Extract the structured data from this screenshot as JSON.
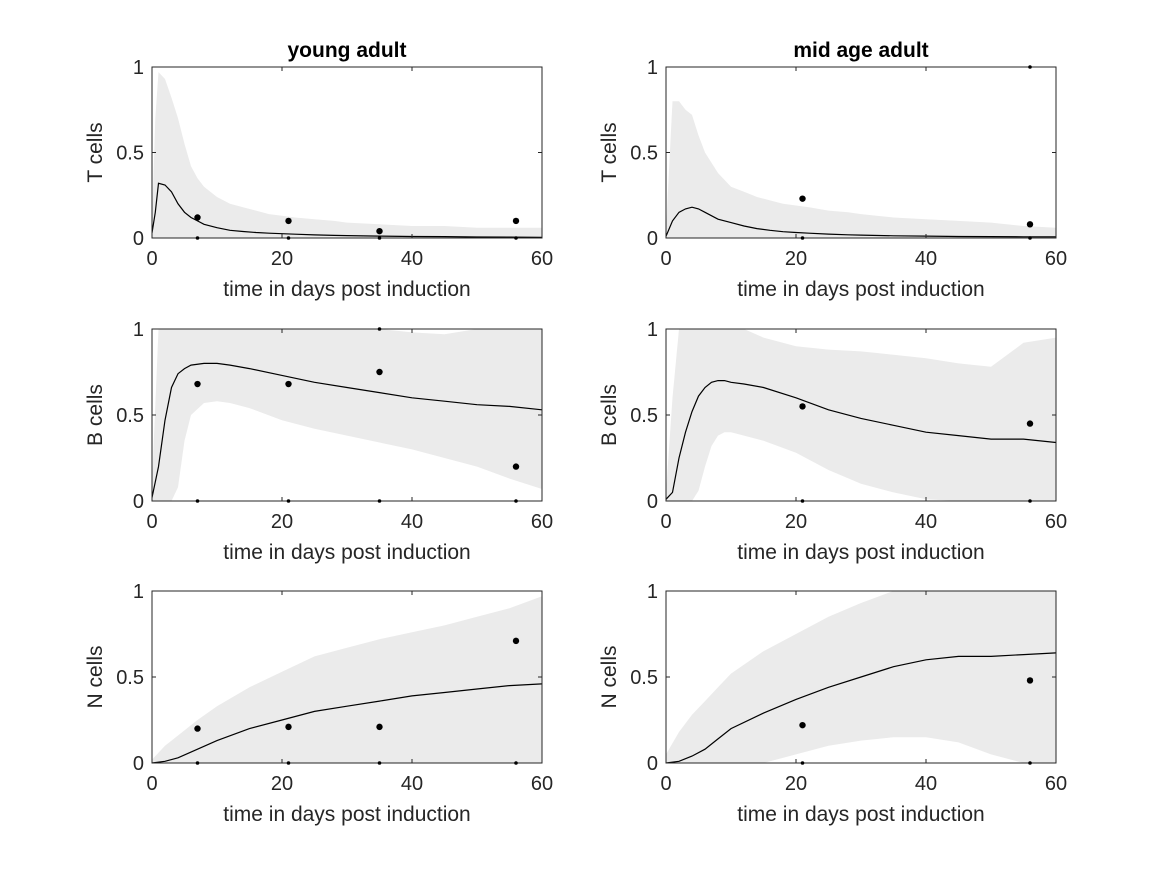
{
  "colors": {
    "band": "#ebebeb",
    "line": "#000000",
    "axis": "#262626",
    "points": "#000000"
  },
  "chart_data": [
    {
      "type": "line",
      "title": "young adult",
      "xlabel": "time in days post induction",
      "ylabel": "T cells",
      "xlim": [
        0,
        60
      ],
      "ylim": [
        0,
        1
      ],
      "xticks": [
        0,
        20,
        40,
        60
      ],
      "yticks": [
        0,
        0.5,
        1
      ],
      "grid": false,
      "x": [
        0,
        0.5,
        1,
        2,
        3,
        4,
        5,
        6,
        7,
        8,
        10,
        12,
        14,
        16,
        18,
        20,
        22,
        25,
        28,
        30,
        35,
        40,
        45,
        50,
        55,
        60
      ],
      "line": [
        0.03,
        0.15,
        0.32,
        0.31,
        0.27,
        0.2,
        0.15,
        0.12,
        0.1,
        0.08,
        0.06,
        0.045,
        0.038,
        0.032,
        0.028,
        0.025,
        0.022,
        0.018,
        0.015,
        0.014,
        0.011,
        0.009,
        0.008,
        0.006,
        0.005,
        0.004
      ],
      "band_upper": [
        0.1,
        0.7,
        0.97,
        0.93,
        0.82,
        0.7,
        0.55,
        0.42,
        0.35,
        0.3,
        0.24,
        0.2,
        0.18,
        0.16,
        0.14,
        0.13,
        0.12,
        0.11,
        0.1,
        0.09,
        0.08,
        0.07,
        0.07,
        0.06,
        0.06,
        0.06
      ],
      "band_lower": [
        0,
        0,
        0,
        0,
        0,
        0,
        0,
        0,
        0,
        0,
        0,
        0,
        0,
        0,
        0,
        0,
        0,
        0,
        0,
        0,
        0,
        0,
        0,
        0,
        0,
        0
      ],
      "points": [
        {
          "x": 7,
          "y": 0.12
        },
        {
          "x": 21,
          "y": 0.1
        },
        {
          "x": 35,
          "y": 0.04
        },
        {
          "x": 56,
          "y": 0.1
        }
      ],
      "minor_points": [
        {
          "x": 7,
          "y": 0
        },
        {
          "x": 21,
          "y": 0
        },
        {
          "x": 35,
          "y": 0
        },
        {
          "x": 56,
          "y": 0
        }
      ]
    },
    {
      "type": "line",
      "title": "mid age adult",
      "xlabel": "time in days post induction",
      "ylabel": "T cells",
      "xlim": [
        0,
        60
      ],
      "ylim": [
        0,
        1
      ],
      "xticks": [
        0,
        20,
        40,
        60
      ],
      "yticks": [
        0,
        0.5,
        1
      ],
      "grid": false,
      "x": [
        0,
        1,
        2,
        3,
        4,
        5,
        6,
        8,
        10,
        12,
        14,
        16,
        18,
        20,
        22,
        25,
        28,
        30,
        35,
        40,
        45,
        50,
        55,
        60
      ],
      "line": [
        0.01,
        0.1,
        0.15,
        0.17,
        0.18,
        0.17,
        0.15,
        0.11,
        0.09,
        0.07,
        0.055,
        0.045,
        0.037,
        0.032,
        0.028,
        0.023,
        0.019,
        0.017,
        0.013,
        0.011,
        0.009,
        0.008,
        0.007,
        0.007
      ],
      "band_upper": [
        0.05,
        0.8,
        0.8,
        0.75,
        0.72,
        0.6,
        0.5,
        0.38,
        0.3,
        0.27,
        0.24,
        0.22,
        0.2,
        0.19,
        0.18,
        0.16,
        0.15,
        0.14,
        0.12,
        0.11,
        0.1,
        0.09,
        0.07,
        0.06
      ],
      "band_lower": [
        0,
        0,
        0,
        0,
        0,
        0,
        0,
        0,
        0,
        0,
        0,
        0,
        0,
        0,
        0,
        0,
        0,
        0,
        0,
        0,
        0,
        0,
        0,
        0
      ],
      "points": [
        {
          "x": 21,
          "y": 0.23
        },
        {
          "x": 56,
          "y": 0.08
        }
      ],
      "minor_points": [
        {
          "x": 21,
          "y": 0
        },
        {
          "x": 56,
          "y": 0
        },
        {
          "x": 56,
          "y": 1
        }
      ]
    },
    {
      "type": "line",
      "title": "",
      "xlabel": "time in days post induction",
      "ylabel": "B cells",
      "xlim": [
        0,
        60
      ],
      "ylim": [
        0,
        1
      ],
      "xticks": [
        0,
        20,
        40,
        60
      ],
      "yticks": [
        0,
        0.5,
        1
      ],
      "grid": false,
      "x": [
        0,
        1,
        2,
        3,
        4,
        5,
        6,
        8,
        10,
        12,
        15,
        20,
        25,
        30,
        35,
        40,
        45,
        50,
        55,
        60
      ],
      "line": [
        0.02,
        0.2,
        0.47,
        0.66,
        0.74,
        0.77,
        0.79,
        0.8,
        0.8,
        0.79,
        0.77,
        0.73,
        0.69,
        0.66,
        0.63,
        0.6,
        0.58,
        0.56,
        0.55,
        0.53
      ],
      "band_upper": [
        0.1,
        1,
        1,
        1,
        1,
        1,
        1,
        1,
        1,
        1,
        1,
        1,
        1,
        1,
        1,
        0.98,
        0.97,
        1,
        1,
        1
      ],
      "band_lower": [
        0,
        0,
        0,
        0,
        0.08,
        0.35,
        0.5,
        0.57,
        0.58,
        0.57,
        0.54,
        0.47,
        0.42,
        0.38,
        0.34,
        0.3,
        0.25,
        0.2,
        0.13,
        0.07
      ],
      "points": [
        {
          "x": 7,
          "y": 0.68
        },
        {
          "x": 21,
          "y": 0.68
        },
        {
          "x": 35,
          "y": 0.75
        },
        {
          "x": 56,
          "y": 0.2
        }
      ],
      "minor_points": [
        {
          "x": 7,
          "y": 0
        },
        {
          "x": 21,
          "y": 0
        },
        {
          "x": 35,
          "y": 0
        },
        {
          "x": 35,
          "y": 1
        },
        {
          "x": 56,
          "y": 0
        }
      ]
    },
    {
      "type": "line",
      "title": "",
      "xlabel": "time in days post induction",
      "ylabel": "B cells",
      "xlim": [
        0,
        60
      ],
      "ylim": [
        0,
        1
      ],
      "xticks": [
        0,
        20,
        40,
        60
      ],
      "yticks": [
        0,
        0.5,
        1
      ],
      "grid": false,
      "x": [
        0,
        1,
        2,
        3,
        4,
        5,
        6,
        7,
        8,
        9,
        10,
        12,
        15,
        20,
        25,
        30,
        35,
        40,
        45,
        50,
        55,
        60
      ],
      "line": [
        0.01,
        0.05,
        0.25,
        0.4,
        0.52,
        0.61,
        0.66,
        0.69,
        0.7,
        0.7,
        0.69,
        0.68,
        0.66,
        0.6,
        0.53,
        0.48,
        0.44,
        0.4,
        0.38,
        0.36,
        0.36,
        0.34
      ],
      "band_upper": [
        0.05,
        0.6,
        1,
        1,
        1,
        1,
        1,
        1,
        1,
        1,
        1,
        1,
        0.95,
        0.9,
        0.88,
        0.87,
        0.85,
        0.83,
        0.8,
        0.78,
        0.92,
        0.95
      ],
      "band_lower": [
        0,
        0,
        0,
        0,
        0,
        0.06,
        0.2,
        0.32,
        0.38,
        0.4,
        0.4,
        0.38,
        0.35,
        0.28,
        0.18,
        0.1,
        0.05,
        0.01,
        0,
        0,
        0,
        0
      ],
      "points": [
        {
          "x": 21,
          "y": 0.55
        },
        {
          "x": 56,
          "y": 0.45
        }
      ],
      "minor_points": [
        {
          "x": 21,
          "y": 0
        },
        {
          "x": 56,
          "y": 0
        }
      ]
    },
    {
      "type": "line",
      "title": "",
      "xlabel": "time in days post induction",
      "ylabel": "N cells",
      "xlim": [
        0,
        60
      ],
      "ylim": [
        0,
        1
      ],
      "xticks": [
        0,
        20,
        40,
        60
      ],
      "yticks": [
        0,
        0.5,
        1
      ],
      "grid": false,
      "x": [
        0,
        2,
        4,
        7,
        10,
        15,
        20,
        25,
        30,
        35,
        40,
        45,
        50,
        55,
        60
      ],
      "line": [
        0,
        0.01,
        0.03,
        0.08,
        0.13,
        0.2,
        0.25,
        0.3,
        0.33,
        0.36,
        0.39,
        0.41,
        0.43,
        0.45,
        0.46
      ],
      "band_upper": [
        0.02,
        0.1,
        0.16,
        0.25,
        0.33,
        0.44,
        0.53,
        0.62,
        0.67,
        0.72,
        0.76,
        0.8,
        0.85,
        0.9,
        0.97
      ],
      "band_lower": [
        0,
        0,
        0,
        0,
        0,
        0,
        0,
        0,
        0,
        0,
        0,
        0,
        0,
        0,
        0
      ],
      "points": [
        {
          "x": 7,
          "y": 0.2
        },
        {
          "x": 21,
          "y": 0.21
        },
        {
          "x": 35,
          "y": 0.21
        },
        {
          "x": 56,
          "y": 0.71
        }
      ],
      "minor_points": [
        {
          "x": 7,
          "y": 0
        },
        {
          "x": 21,
          "y": 0
        },
        {
          "x": 35,
          "y": 0
        },
        {
          "x": 56,
          "y": 0
        }
      ]
    },
    {
      "type": "line",
      "title": "",
      "xlabel": "time in days post induction",
      "ylabel": "N cells",
      "xlim": [
        0,
        60
      ],
      "ylim": [
        0,
        1
      ],
      "xticks": [
        0,
        20,
        40,
        60
      ],
      "yticks": [
        0,
        0.5,
        1
      ],
      "grid": false,
      "x": [
        0,
        2,
        4,
        6,
        8,
        10,
        15,
        20,
        25,
        30,
        35,
        40,
        45,
        50,
        55,
        60
      ],
      "line": [
        0,
        0.01,
        0.04,
        0.08,
        0.14,
        0.2,
        0.29,
        0.37,
        0.44,
        0.5,
        0.56,
        0.6,
        0.62,
        0.62,
        0.63,
        0.64
      ],
      "band_upper": [
        0.05,
        0.18,
        0.28,
        0.36,
        0.44,
        0.52,
        0.65,
        0.75,
        0.85,
        0.93,
        1,
        1,
        1,
        1,
        1,
        1
      ],
      "band_lower": [
        0,
        0,
        0,
        0,
        0,
        0,
        0,
        0.05,
        0.1,
        0.13,
        0.15,
        0.15,
        0.12,
        0.05,
        0,
        0
      ],
      "points": [
        {
          "x": 21,
          "y": 0.22
        },
        {
          "x": 56,
          "y": 0.48
        }
      ],
      "minor_points": [
        {
          "x": 21,
          "y": 0
        },
        {
          "x": 56,
          "y": 0
        }
      ]
    }
  ]
}
